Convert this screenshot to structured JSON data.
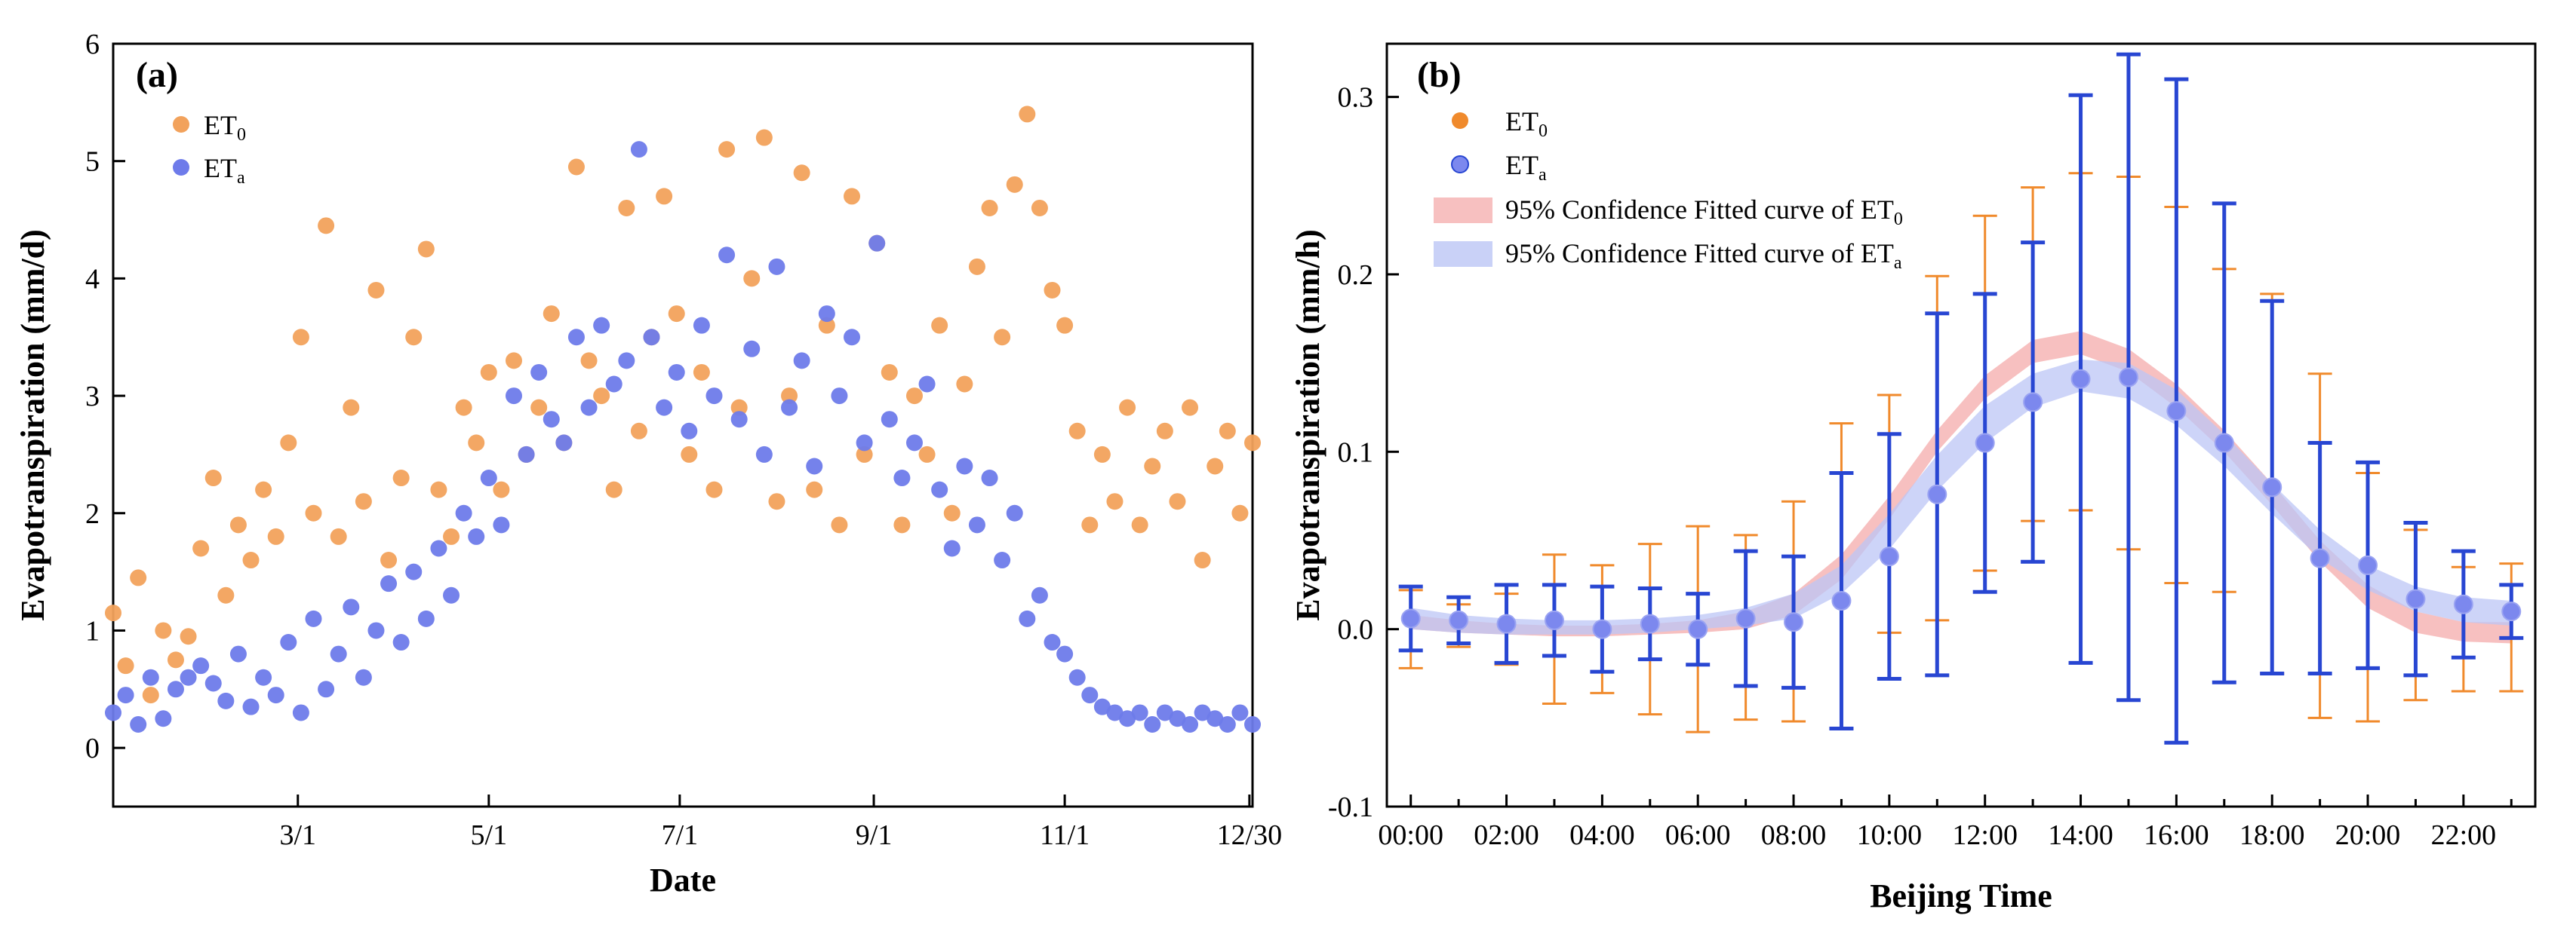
{
  "chart_data": [
    {
      "type": "scatter",
      "panel_label": "(a)",
      "xlabel": "Date",
      "ylabel": "Evapotranspiration (mm/d)",
      "xlim": [
        1,
        365
      ],
      "ylim": [
        -0.5,
        6
      ],
      "x_ticks": [
        {
          "day": 60,
          "label": "3/1"
        },
        {
          "day": 121,
          "label": "5/1"
        },
        {
          "day": 182,
          "label": "7/1"
        },
        {
          "day": 244,
          "label": "9/1"
        },
        {
          "day": 305,
          "label": "11/1"
        },
        {
          "day": 364,
          "label": "12/30"
        }
      ],
      "y_ticks": [
        0,
        1,
        2,
        3,
        4,
        5,
        6
      ],
      "legend": {
        "position": "top-left",
        "entries": [
          "ET0",
          "ETa"
        ]
      },
      "series": [
        {
          "name": "ET0",
          "color": "#F2A25C",
          "x": [
            1,
            5,
            9,
            13,
            17,
            21,
            25,
            29,
            33,
            37,
            41,
            45,
            49,
            53,
            57,
            61,
            65,
            69,
            73,
            77,
            81,
            85,
            89,
            93,
            97,
            101,
            105,
            109,
            113,
            117,
            121,
            125,
            129,
            133,
            137,
            141,
            145,
            149,
            153,
            157,
            161,
            165,
            169,
            173,
            177,
            181,
            185,
            189,
            193,
            197,
            201,
            205,
            209,
            213,
            217,
            221,
            225,
            229,
            233,
            237,
            241,
            245,
            249,
            253,
            257,
            261,
            265,
            269,
            273,
            277,
            281,
            285,
            289,
            293,
            297,
            301,
            305,
            309,
            313,
            317,
            321,
            325,
            329,
            333,
            337,
            341,
            345,
            349,
            353,
            357,
            361,
            365
          ],
          "y": [
            1.15,
            0.7,
            1.45,
            0.45,
            1.0,
            0.75,
            0.95,
            1.7,
            2.3,
            1.3,
            1.9,
            1.6,
            2.2,
            1.8,
            2.6,
            3.5,
            2.0,
            4.45,
            1.8,
            2.9,
            2.1,
            3.9,
            1.6,
            2.3,
            3.5,
            4.25,
            2.2,
            1.8,
            2.9,
            2.6,
            3.2,
            2.2,
            3.3,
            2.5,
            2.9,
            3.7,
            2.6,
            4.95,
            3.3,
            3.0,
            2.2,
            4.6,
            2.7,
            3.5,
            4.7,
            3.7,
            2.5,
            3.2,
            2.2,
            5.1,
            2.9,
            4.0,
            5.2,
            2.1,
            3.0,
            4.9,
            2.2,
            3.6,
            1.9,
            4.7,
            2.5,
            4.3,
            3.2,
            1.9,
            3.0,
            2.5,
            3.6,
            2.0,
            3.1,
            4.1,
            4.6,
            3.5,
            4.8,
            5.4,
            4.6,
            3.9,
            3.6,
            2.7,
            1.9,
            2.5,
            2.1,
            2.9,
            1.9,
            2.4,
            2.7,
            2.1,
            2.9,
            1.6,
            2.4,
            2.7,
            2.0,
            2.6
          ]
        },
        {
          "name": "ETa",
          "color": "#6E7BEA",
          "x": [
            1,
            5,
            9,
            13,
            17,
            21,
            25,
            29,
            33,
            37,
            41,
            45,
            49,
            53,
            57,
            61,
            65,
            69,
            73,
            77,
            81,
            85,
            89,
            93,
            97,
            101,
            105,
            109,
            113,
            117,
            121,
            125,
            129,
            133,
            137,
            141,
            145,
            149,
            153,
            157,
            161,
            165,
            169,
            173,
            177,
            181,
            185,
            189,
            193,
            197,
            201,
            205,
            209,
            213,
            217,
            221,
            225,
            229,
            233,
            237,
            241,
            245,
            249,
            253,
            257,
            261,
            265,
            269,
            273,
            277,
            281,
            285,
            289,
            293,
            297,
            301,
            305,
            309,
            313,
            317,
            321,
            325,
            329,
            333,
            337,
            341,
            345,
            349,
            353,
            357,
            361,
            365
          ],
          "y": [
            0.3,
            0.45,
            0.2,
            0.6,
            0.25,
            0.5,
            0.6,
            0.7,
            0.55,
            0.4,
            0.8,
            0.35,
            0.6,
            0.45,
            0.9,
            0.3,
            1.1,
            0.5,
            0.8,
            1.2,
            0.6,
            1.0,
            1.4,
            0.9,
            1.5,
            1.1,
            1.7,
            1.3,
            2.0,
            1.8,
            2.3,
            1.9,
            3.0,
            2.5,
            3.2,
            2.8,
            2.6,
            3.5,
            2.9,
            3.6,
            3.1,
            3.3,
            5.1,
            3.5,
            2.9,
            3.2,
            2.7,
            3.6,
            3.0,
            4.2,
            2.8,
            3.4,
            2.5,
            4.1,
            2.9,
            3.3,
            2.4,
            3.7,
            3.0,
            3.5,
            2.6,
            4.3,
            2.8,
            2.3,
            2.6,
            3.1,
            2.2,
            1.7,
            2.4,
            1.9,
            2.3,
            1.6,
            2.0,
            1.1,
            1.3,
            0.9,
            0.8,
            0.6,
            0.45,
            0.35,
            0.3,
            0.25,
            0.3,
            0.2,
            0.3,
            0.25,
            0.2,
            0.3,
            0.25,
            0.2,
            0.3,
            0.2
          ]
        }
      ]
    },
    {
      "type": "line",
      "panel_label": "(b)",
      "xlabel": "Beijing Time",
      "ylabel": "Evapotranspiration (mm/h)",
      "xlim": [
        -0.5,
        23.5
      ],
      "ylim": [
        -0.1,
        0.33
      ],
      "x_ticks": [
        {
          "hour": 0,
          "label": "00:00"
        },
        {
          "hour": 2,
          "label": "02:00"
        },
        {
          "hour": 4,
          "label": "04:00"
        },
        {
          "hour": 6,
          "label": "06:00"
        },
        {
          "hour": 8,
          "label": "08:00"
        },
        {
          "hour": 10,
          "label": "10:00"
        },
        {
          "hour": 12,
          "label": "12:00"
        },
        {
          "hour": 14,
          "label": "14:00"
        },
        {
          "hour": 16,
          "label": "16:00"
        },
        {
          "hour": 18,
          "label": "18:00"
        },
        {
          "hour": 20,
          "label": "20:00"
        },
        {
          "hour": 22,
          "label": "22:00"
        }
      ],
      "y_ticks": [
        -0.1,
        0.0,
        0.1,
        0.2,
        0.3
      ],
      "legend": {
        "position": "top-left",
        "entries": [
          "ET0",
          "ETa",
          "95% Confidence Fitted curve of ET0",
          "95% Confidence Fitted curve of ETa"
        ]
      },
      "series": [
        {
          "name": "ET0",
          "color": "#F08A2C",
          "x": [
            0,
            1,
            2,
            3,
            4,
            5,
            6,
            7,
            8,
            9,
            10,
            11,
            12,
            13,
            14,
            15,
            16,
            17,
            18,
            19,
            20,
            21,
            22,
            23
          ],
          "y": [
            0.0,
            0.002,
            0.0,
            0.0,
            0.0,
            0.0,
            0.0,
            0.001,
            0.01,
            0.03,
            0.065,
            0.102,
            0.133,
            0.155,
            0.162,
            0.15,
            0.132,
            0.112,
            0.082,
            0.047,
            0.018,
            0.008,
            0.0,
            0.001
          ],
          "err": [
            0.022,
            0.012,
            0.02,
            0.042,
            0.036,
            0.048,
            0.058,
            0.052,
            0.062,
            0.086,
            0.067,
            0.097,
            0.1,
            0.094,
            0.095,
            0.105,
            0.106,
            0.091,
            0.107,
            0.097,
            0.07,
            0.048,
            0.035,
            0.036
          ]
        },
        {
          "name": "ETa",
          "color": "#2846D2",
          "x": [
            0,
            1,
            2,
            3,
            4,
            5,
            6,
            7,
            8,
            9,
            10,
            11,
            12,
            13,
            14,
            15,
            16,
            17,
            18,
            19,
            20,
            21,
            22,
            23
          ],
          "y": [
            0.006,
            0.005,
            0.003,
            0.005,
            0.0,
            0.003,
            0.0,
            0.006,
            0.004,
            0.016,
            0.041,
            0.076,
            0.105,
            0.128,
            0.141,
            0.142,
            0.123,
            0.105,
            0.08,
            0.04,
            0.036,
            0.017,
            0.014,
            0.01
          ],
          "err": [
            0.018,
            0.013,
            0.022,
            0.02,
            0.024,
            0.02,
            0.02,
            0.038,
            0.037,
            0.072,
            0.069,
            0.102,
            0.084,
            0.09,
            0.16,
            0.182,
            0.187,
            0.135,
            0.105,
            0.065,
            0.058,
            0.043,
            0.03,
            0.015
          ]
        },
        {
          "name": "95% Confidence Fitted curve of ET0",
          "color": "#F4A5A5",
          "x": [
            0,
            1,
            2,
            3,
            4,
            5,
            6,
            7,
            8,
            9,
            10,
            11,
            12,
            13,
            14,
            15,
            16,
            17,
            18,
            19,
            20,
            21,
            22,
            23
          ],
          "lower": [
            0.0,
            -0.002,
            -0.003,
            -0.004,
            -0.004,
            -0.003,
            -0.002,
            0.0,
            0.008,
            0.028,
            0.062,
            0.1,
            0.13,
            0.15,
            0.155,
            0.145,
            0.125,
            0.1,
            0.07,
            0.038,
            0.012,
            -0.002,
            -0.007,
            -0.008
          ],
          "upper": [
            0.008,
            0.005,
            0.003,
            0.002,
            0.002,
            0.003,
            0.005,
            0.01,
            0.02,
            0.042,
            0.075,
            0.112,
            0.143,
            0.163,
            0.168,
            0.158,
            0.138,
            0.112,
            0.082,
            0.05,
            0.025,
            0.01,
            0.004,
            0.004
          ]
        },
        {
          "name": "95% Confidence Fitted curve of ETa",
          "color": "#BCC5F5",
          "x": [
            0,
            1,
            2,
            3,
            4,
            5,
            6,
            7,
            8,
            9,
            10,
            11,
            12,
            13,
            14,
            15,
            16,
            17,
            18,
            19,
            20,
            21,
            22,
            23
          ],
          "lower": [
            0.0,
            -0.002,
            -0.003,
            -0.003,
            -0.003,
            -0.002,
            0.0,
            0.002,
            0.006,
            0.02,
            0.045,
            0.078,
            0.105,
            0.125,
            0.134,
            0.13,
            0.115,
            0.092,
            0.065,
            0.04,
            0.022,
            0.01,
            0.004,
            0.002
          ],
          "upper": [
            0.012,
            0.008,
            0.006,
            0.005,
            0.005,
            0.006,
            0.008,
            0.012,
            0.02,
            0.036,
            0.065,
            0.098,
            0.126,
            0.144,
            0.152,
            0.15,
            0.135,
            0.11,
            0.082,
            0.056,
            0.036,
            0.024,
            0.018,
            0.016
          ]
        }
      ]
    }
  ]
}
